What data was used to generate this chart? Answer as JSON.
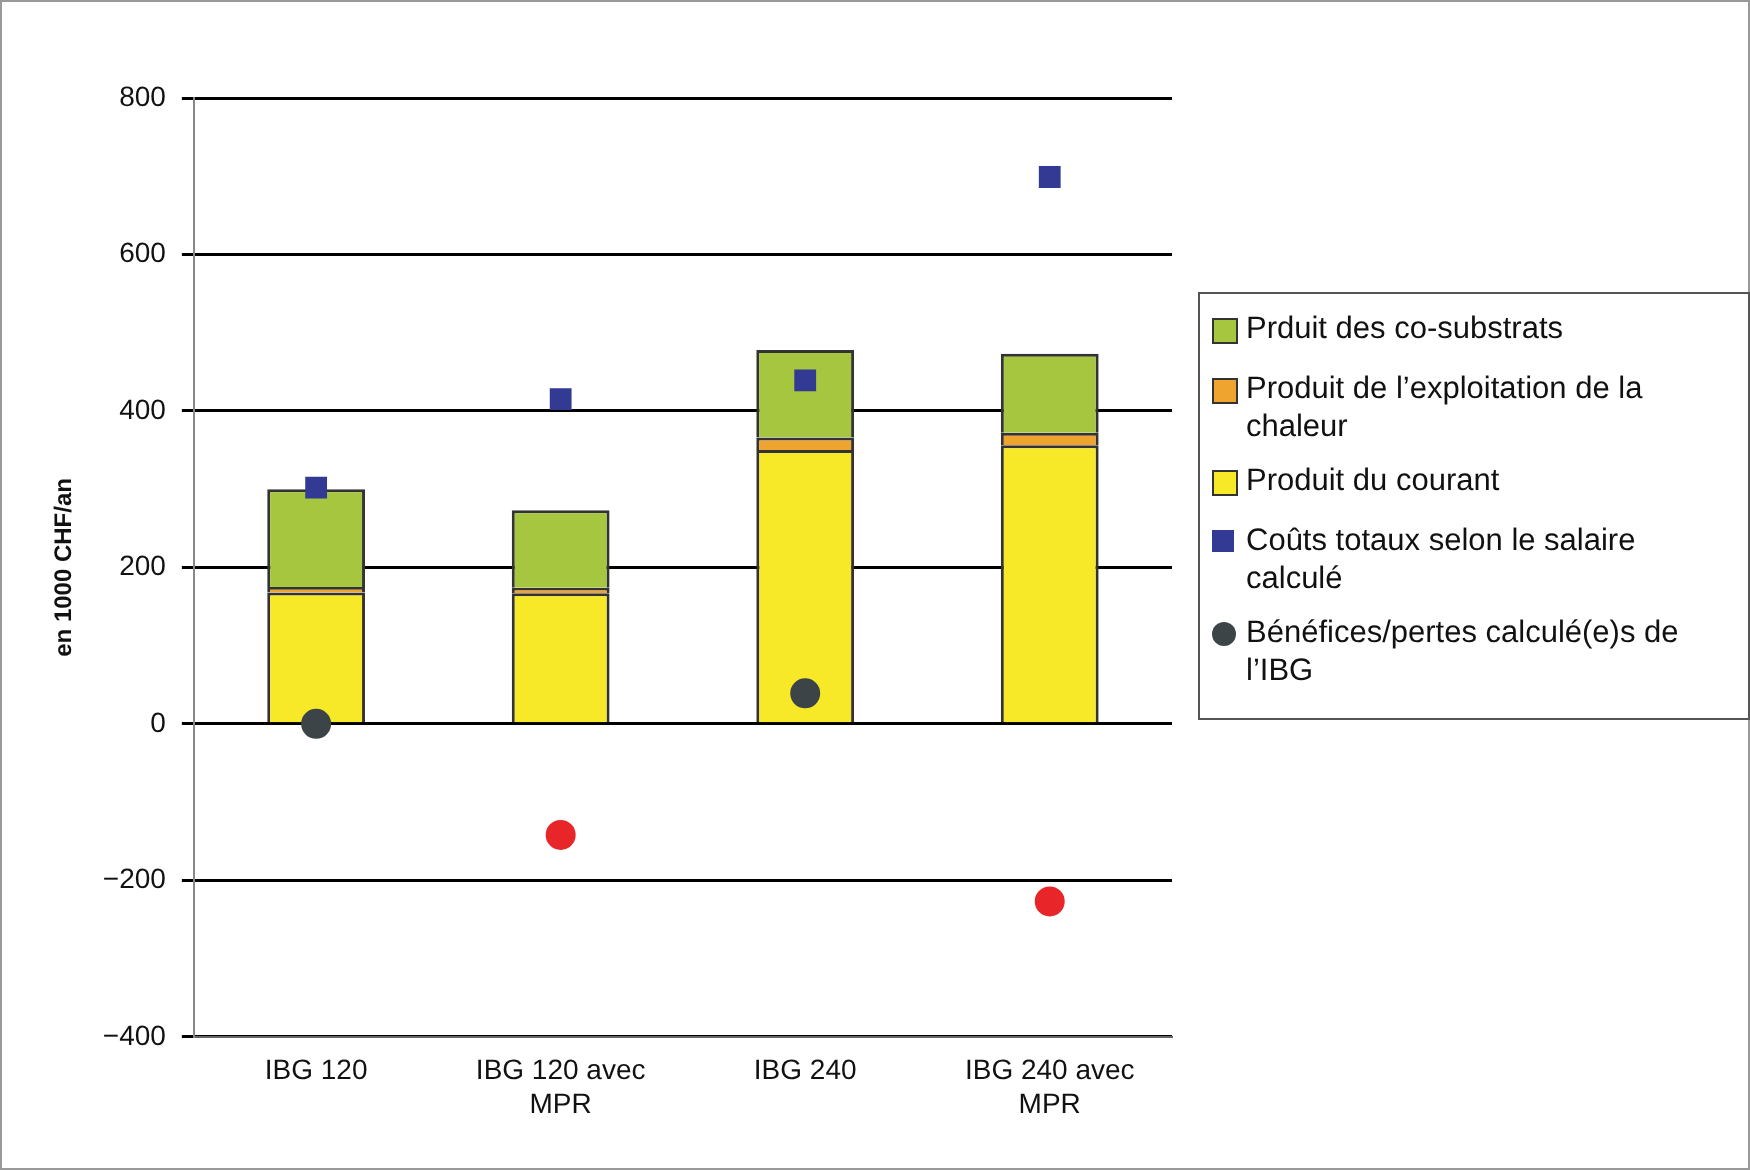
{
  "chart_data": {
    "type": "bar",
    "stacked": true,
    "ylabel": "en 1000 CHF/an",
    "categories": [
      "IBG 120",
      "IBG 120 avec MPR",
      "IBG 240",
      "IBG 240 avec MPR"
    ],
    "series": [
      {
        "name": "Produit du courant",
        "color": "#f7e928",
        "values": [
          168,
          167,
          350,
          356
        ]
      },
      {
        "name": "Produit de l’exploitation de la chaleur",
        "color": "#f0a430",
        "values": [
          7,
          7,
          16,
          16
        ]
      },
      {
        "name": "Prduit des co-substrats",
        "color": "#a6c63f",
        "values": [
          125,
          99,
          112,
          101
        ]
      },
      {
        "name": "Coûts totaux selon le salaire calculé",
        "type": "scatter",
        "marker": "square",
        "color": "#333a94",
        "values": [
          302,
          415,
          439,
          699
        ]
      },
      {
        "name": "Bénéfices/pertes calculé(e)s de l’IBG",
        "type": "scatter",
        "marker": "circle",
        "color": "#3c4448",
        "colors": [
          "#3c4448",
          "#e8262a",
          "#3c4448",
          "#e8262a"
        ],
        "values": [
          0,
          -142,
          39,
          -227
        ]
      }
    ],
    "ylim": [
      -400,
      800
    ],
    "yticks": [
      {
        "value": -400,
        "label": "−400"
      },
      {
        "value": -200,
        "label": "−200"
      },
      0,
      200,
      400,
      600,
      800
    ],
    "grid": "y",
    "legend": "right"
  }
}
